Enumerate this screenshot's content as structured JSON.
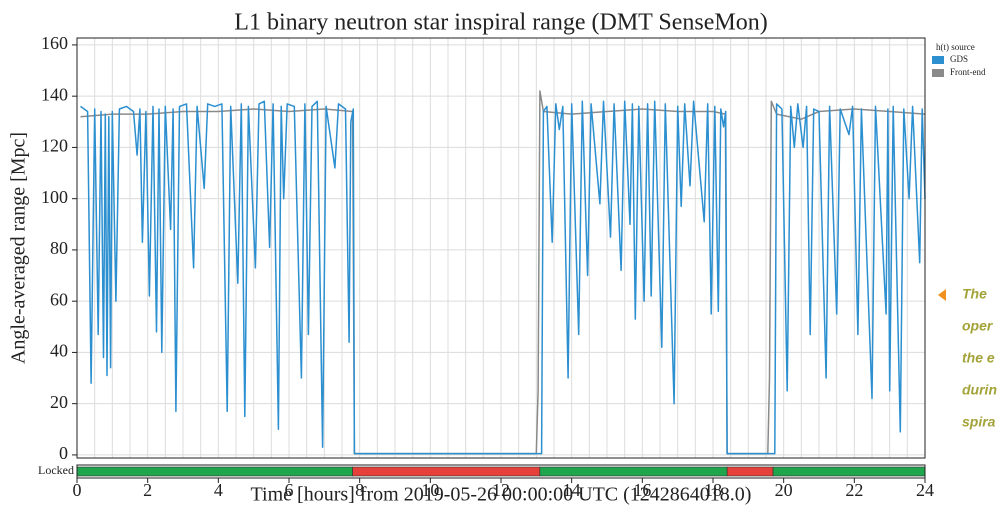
{
  "chart_data": {
    "type": "line",
    "title": "L1 binary neutron star inspiral range (DMT SenseMon)",
    "x_label": "Time [hours] from 2019-05-26 00:00:00 UTC (1242864018.0)",
    "y_label": "Angle-averaged range [Mpc]",
    "legend_title": "h(t) source",
    "xlim": [
      0,
      24
    ],
    "ylim": [
      -1.2,
      162.7
    ],
    "xticks": [
      0,
      2,
      4,
      6,
      8,
      10,
      12,
      14,
      16,
      18,
      20,
      22,
      24
    ],
    "yticks": [
      0,
      20,
      40,
      60,
      80,
      100,
      120,
      140,
      160
    ],
    "xgrid": [
      0.5,
      1,
      1.5,
      2,
      2.5,
      3,
      3.5,
      4,
      4.5,
      5,
      5.5,
      6,
      6.5,
      7,
      7.5,
      8,
      8.5,
      9,
      9.5,
      10,
      10.5,
      11,
      11.5,
      12,
      12.5,
      13,
      13.5,
      14,
      14.5,
      15,
      15.5,
      16,
      16.5,
      17,
      17.5,
      18,
      18.5,
      19,
      19.5,
      20,
      20.5,
      21,
      21.5,
      22,
      22.5,
      23,
      23.5
    ],
    "grid": true,
    "series": [
      {
        "name": "Front-end",
        "color": "#8a8a8a",
        "x": [
          0.1,
          1,
          2,
          3,
          4,
          5,
          6,
          7,
          7.8,
          7.85,
          13.0,
          13.05,
          13.1,
          13.2,
          14,
          15,
          16,
          17,
          18,
          18.35,
          18.4,
          19.55,
          19.6,
          19.65,
          19.8,
          20.5,
          21,
          22,
          23,
          24
        ],
        "values": [
          132,
          133,
          133,
          134,
          134,
          135,
          134,
          135,
          134,
          0.5,
          0.5,
          25,
          142,
          134,
          133,
          134,
          135,
          134,
          134,
          133,
          0.5,
          0.5,
          30,
          138,
          133,
          131,
          134,
          135,
          134,
          133
        ]
      },
      {
        "name": "GDS",
        "color": "#2b8fd0",
        "x": [
          0.1,
          0.3,
          0.4,
          0.5,
          0.6,
          0.68,
          0.75,
          0.8,
          0.85,
          0.9,
          0.95,
          1.0,
          1.1,
          1.2,
          1.4,
          1.6,
          1.7,
          1.78,
          1.85,
          1.95,
          2.05,
          2.15,
          2.25,
          2.32,
          2.4,
          2.5,
          2.65,
          2.72,
          2.8,
          2.9,
          3.1,
          3.3,
          3.4,
          3.6,
          3.7,
          3.9,
          4.1,
          4.25,
          4.35,
          4.55,
          4.65,
          4.75,
          4.85,
          5.05,
          5.15,
          5.3,
          5.45,
          5.55,
          5.7,
          5.78,
          5.85,
          5.95,
          6.15,
          6.35,
          6.45,
          6.55,
          6.65,
          6.8,
          6.95,
          7.05,
          7.3,
          7.4,
          7.6,
          7.7,
          7.75,
          7.82,
          7.85,
          13.15,
          13.2,
          13.3,
          13.45,
          13.55,
          13.65,
          13.75,
          13.9,
          14.0,
          14.2,
          14.3,
          14.45,
          14.55,
          14.8,
          14.9,
          15.1,
          15.2,
          15.4,
          15.5,
          15.65,
          15.72,
          15.8,
          15.9,
          16.05,
          16.15,
          16.25,
          16.35,
          16.55,
          16.65,
          16.9,
          17.0,
          17.1,
          17.2,
          17.35,
          17.45,
          17.75,
          17.85,
          17.95,
          18.05,
          18.15,
          18.22,
          18.3,
          18.36,
          18.4,
          19.75,
          19.8,
          19.95,
          20.1,
          20.2,
          20.3,
          20.4,
          20.55,
          20.65,
          20.75,
          20.85,
          21.0,
          21.2,
          21.3,
          21.5,
          21.6,
          21.85,
          21.95,
          22.1,
          22.2,
          22.5,
          22.6,
          22.9,
          22.95,
          23.0,
          23.1,
          23.3,
          23.4,
          23.55,
          23.65,
          23.85,
          23.92,
          24
        ],
        "values": [
          136,
          134,
          28,
          135,
          47,
          134,
          38,
          133,
          31,
          132,
          34,
          134,
          60,
          135,
          136,
          134,
          117,
          135,
          83,
          134,
          62,
          136,
          48,
          135,
          40,
          136,
          88,
          135,
          17,
          136,
          137,
          73,
          136,
          104,
          137,
          136,
          137,
          17,
          136,
          67,
          137,
          15,
          136,
          73,
          137,
          138,
          81,
          137,
          10,
          136,
          100,
          137,
          136,
          30,
          137,
          47,
          136,
          138,
          3,
          136,
          112,
          137,
          135,
          44,
          130,
          135,
          0.5,
          0.5,
          134,
          136,
          83,
          137,
          127,
          136,
          30,
          137,
          47,
          138,
          70,
          137,
          98,
          138,
          85,
          137,
          72,
          138,
          90,
          137,
          53,
          136,
          60,
          137,
          62,
          138,
          42,
          137,
          20,
          136,
          97,
          137,
          105,
          138,
          91,
          137,
          55,
          136,
          56,
          135,
          128,
          134,
          0.5,
          0.5,
          137,
          135,
          25,
          136,
          120,
          137,
          120,
          136,
          47,
          135,
          134,
          30,
          136,
          55,
          135,
          125,
          136,
          47,
          135,
          22,
          136,
          55,
          135,
          25,
          136,
          9,
          135,
          100,
          136,
          75,
          135,
          100
        ]
      }
    ],
    "locked_label": "Locked",
    "locked_segments": [
      {
        "start": 0,
        "end": 7.8,
        "color": "#1fa64c"
      },
      {
        "start": 7.8,
        "end": 13.1,
        "color": "#e5413a"
      },
      {
        "start": 13.1,
        "end": 18.4,
        "color": "#1fa64c"
      },
      {
        "start": 18.4,
        "end": 19.7,
        "color": "#e5413a"
      },
      {
        "start": 19.7,
        "end": 24,
        "color": "#1fa64c"
      }
    ],
    "side_note_lines": [
      "The",
      "oper",
      "the e",
      "durin",
      "spira"
    ]
  }
}
